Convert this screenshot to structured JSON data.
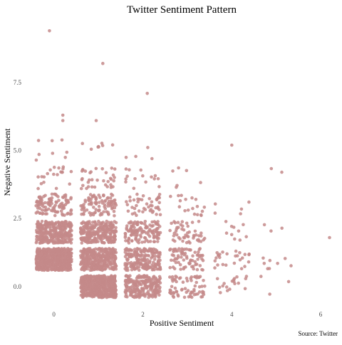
{
  "chart_data": {
    "type": "scatter",
    "title": "Twitter Sentiment Pattern",
    "xlabel": "Positive Sentiment",
    "ylabel": "Negative Sentiment",
    "caption": "Source: Twitter",
    "xlim": [
      -0.7,
      6.4
    ],
    "ylim": [
      -0.5,
      9.8
    ],
    "x_ticks": [
      0,
      2,
      4,
      6
    ],
    "x_tick_labels": [
      "0",
      "2",
      "4",
      "6"
    ],
    "y_ticks": [
      0,
      2.5,
      5,
      7.5
    ],
    "y_tick_labels": [
      "0.0",
      "2.5",
      "5.0",
      "7.5"
    ],
    "grid": false,
    "legend": "none",
    "point_color": "#c48a8a",
    "jitter": 0.4,
    "clusters": [
      {
        "x": 0,
        "y": 1,
        "count": 620
      },
      {
        "x": 0,
        "y": 2,
        "count": 320
      },
      {
        "x": 0,
        "y": 3,
        "count": 110
      },
      {
        "x": 0,
        "y": 4,
        "count": 20
      },
      {
        "x": 0,
        "y": 5,
        "count": 8
      },
      {
        "x": 1,
        "y": 0,
        "count": 520
      },
      {
        "x": 1,
        "y": 1,
        "count": 360
      },
      {
        "x": 1,
        "y": 2,
        "count": 260
      },
      {
        "x": 1,
        "y": 3,
        "count": 95
      },
      {
        "x": 1,
        "y": 4,
        "count": 35
      },
      {
        "x": 1,
        "y": 5,
        "count": 8
      },
      {
        "x": 2,
        "y": 0,
        "count": 220
      },
      {
        "x": 2,
        "y": 1,
        "count": 200
      },
      {
        "x": 2,
        "y": 2,
        "count": 130
      },
      {
        "x": 2,
        "y": 3,
        "count": 45
      },
      {
        "x": 2,
        "y": 4,
        "count": 15
      },
      {
        "x": 2,
        "y": 5,
        "count": 4
      },
      {
        "x": 3,
        "y": 0,
        "count": 70
      },
      {
        "x": 3,
        "y": 1,
        "count": 75
      },
      {
        "x": 3,
        "y": 2,
        "count": 50
      },
      {
        "x": 3,
        "y": 3,
        "count": 18
      },
      {
        "x": 3,
        "y": 4,
        "count": 6
      },
      {
        "x": 4,
        "y": 0,
        "count": 18
      },
      {
        "x": 4,
        "y": 1,
        "count": 26
      },
      {
        "x": 4,
        "y": 2,
        "count": 10
      },
      {
        "x": 4,
        "y": 3,
        "count": 5
      },
      {
        "x": 5,
        "y": 0,
        "count": 3
      },
      {
        "x": 5,
        "y": 1,
        "count": 8
      },
      {
        "x": 5,
        "y": 2,
        "count": 3
      },
      {
        "x": 5,
        "y": 4,
        "count": 2
      }
    ],
    "outliers": [
      {
        "x": -0.1,
        "y": 9.4
      },
      {
        "x": 1.1,
        "y": 8.2
      },
      {
        "x": 2.1,
        "y": 7.1
      },
      {
        "x": 0.2,
        "y": 6.3
      },
      {
        "x": 0.2,
        "y": 6.1
      },
      {
        "x": 0.95,
        "y": 6.1
      },
      {
        "x": 4.0,
        "y": 5.2
      },
      {
        "x": 6.2,
        "y": 1.8
      }
    ]
  }
}
